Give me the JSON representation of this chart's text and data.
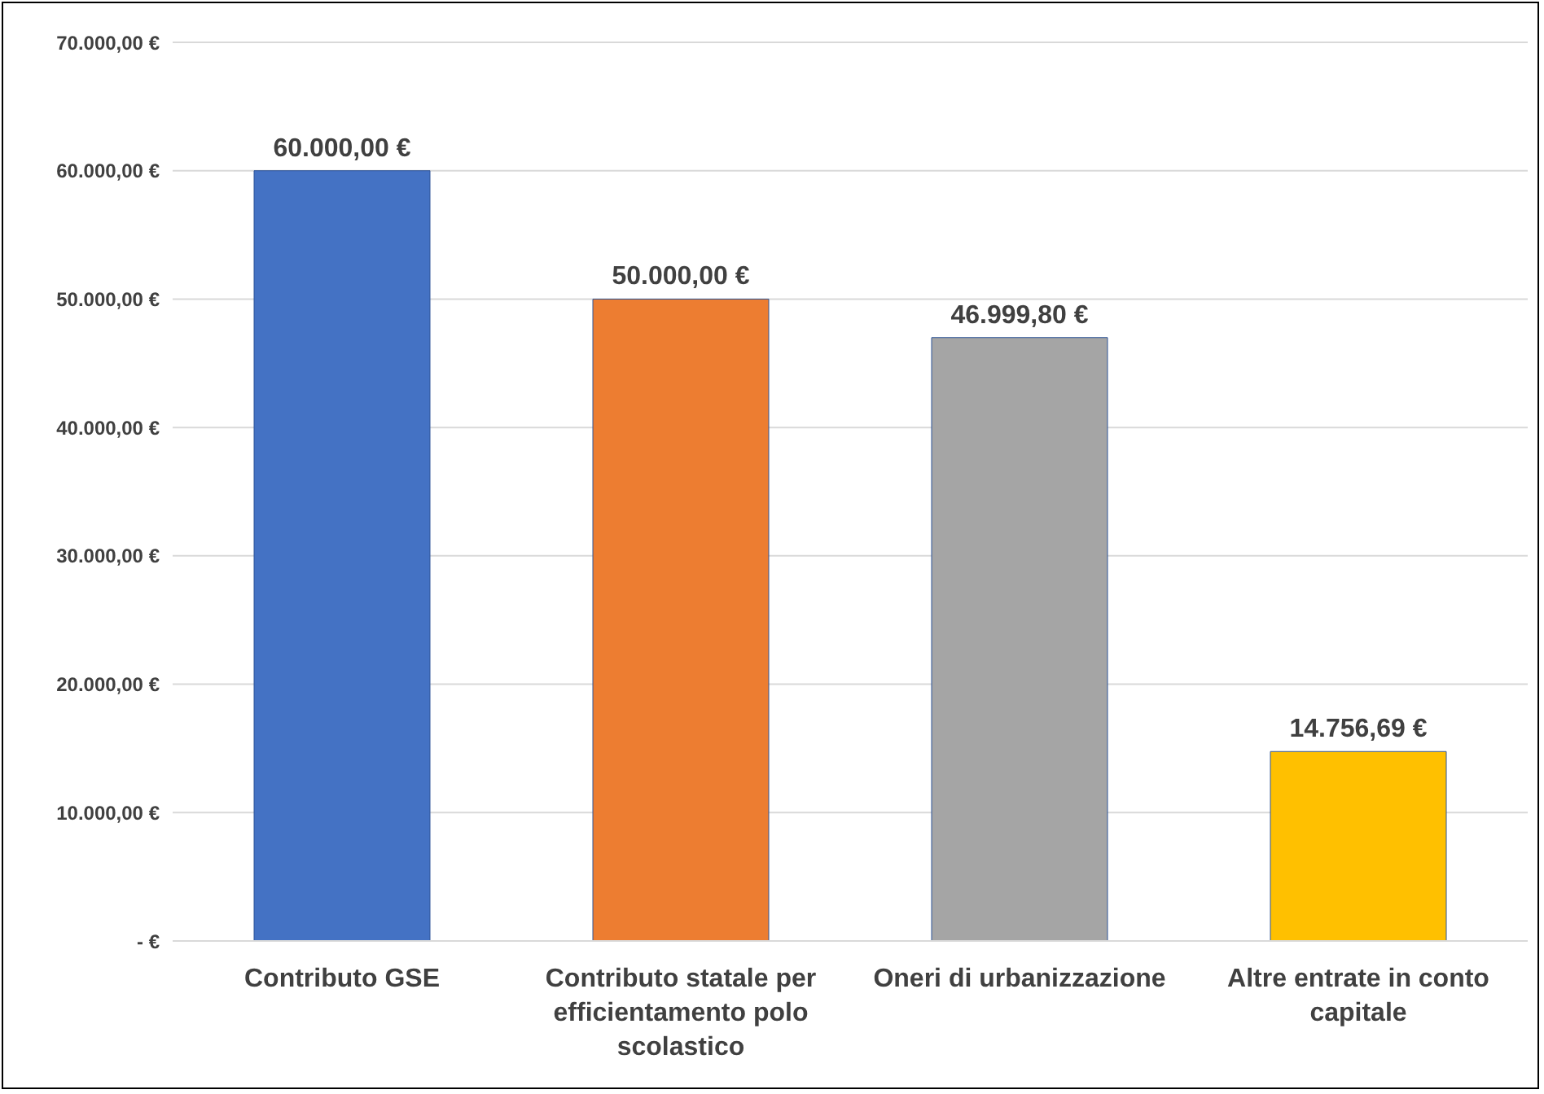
{
  "chart_data": {
    "type": "bar",
    "categories": [
      "Contributo GSE",
      "Contributo statale per efficientamento polo scolastico",
      "Oneri di urbanizzazione",
      "Altre entrate in conto capitale"
    ],
    "values": [
      60000,
      50000,
      46999.8,
      14756.69
    ],
    "colors": [
      "#4472c4",
      "#ed7d31",
      "#a5a5a5",
      "#ffc000"
    ],
    "value_labels": [
      "60.000,00 €",
      "50.000,00 €",
      "46.999,80 €",
      "14.756,69 €"
    ],
    "ylim": [
      0,
      70000
    ],
    "yticks": [
      {
        "value": 0,
        "label": "-   €"
      },
      {
        "value": 10000,
        "label": "10.000,00 €"
      },
      {
        "value": 20000,
        "label": "20.000,00 €"
      },
      {
        "value": 30000,
        "label": "30.000,00 €"
      },
      {
        "value": 40000,
        "label": "40.000,00 €"
      },
      {
        "value": 50000,
        "label": "50.000,00 €"
      },
      {
        "value": 60000,
        "label": "60.000,00 €"
      },
      {
        "value": 70000,
        "label": "70.000,00 €"
      }
    ],
    "grid": "y",
    "legend": false
  }
}
